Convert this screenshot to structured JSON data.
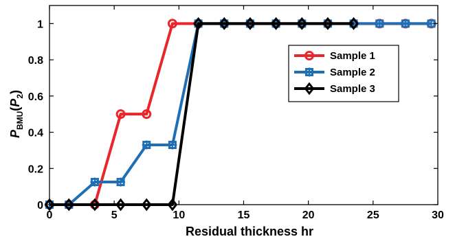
{
  "chart_data": {
    "type": "line",
    "xlabel": "Residual thickness hr",
    "ylabel": {
      "main": "P",
      "sub": "BMU",
      "paren_open": "(",
      "arg": "P",
      "arg_sub": "2",
      "paren_close": ")"
    },
    "xlim": [
      0,
      30
    ],
    "ylim": [
      0,
      1.1
    ],
    "xticks": [
      0,
      5,
      10,
      15,
      20,
      25,
      30
    ],
    "yticks": [
      0,
      0.2,
      0.4,
      0.6,
      0.8,
      1
    ],
    "ytick_labels": [
      "0",
      "0.2",
      "0.4",
      "0.6",
      "0.8",
      "1"
    ],
    "grid": false,
    "legend_position": "top-right",
    "series": [
      {
        "name": "Sample 1",
        "color": "#e8262b",
        "marker": "circle",
        "x": [
          0,
          1.5,
          3.5,
          5.5,
          7.5,
          9.5,
          11.5,
          13.5,
          15.5,
          17.5,
          19.5,
          21.5,
          23.5,
          25.5,
          27.5,
          29.5
        ],
        "y": [
          0,
          0,
          0,
          0.5,
          0.5,
          1,
          1,
          1,
          1,
          1,
          1,
          1,
          1,
          1,
          1,
          1
        ]
      },
      {
        "name": "Sample 2",
        "color": "#1f6fb5",
        "marker": "square",
        "x": [
          0,
          1.5,
          3.5,
          5.5,
          7.5,
          9.5,
          11.5,
          13.5,
          15.5,
          17.5,
          19.5,
          21.5,
          23.5,
          25.5,
          27.5,
          29.5
        ],
        "y": [
          0,
          0,
          0.125,
          0.125,
          0.33,
          0.33,
          1,
          1,
          1,
          1,
          1,
          1,
          1,
          1,
          1,
          1
        ]
      },
      {
        "name": "Sample 3",
        "color": "#000000",
        "marker": "diamond",
        "x": [
          0,
          1.5,
          3.5,
          5.5,
          7.5,
          9.5,
          11.5,
          13.5,
          15.5,
          17.5,
          19.5,
          21.5,
          23.5
        ],
        "y": [
          0,
          0,
          0,
          0,
          0,
          0,
          1,
          1,
          1,
          1,
          1,
          1,
          1
        ]
      }
    ]
  }
}
